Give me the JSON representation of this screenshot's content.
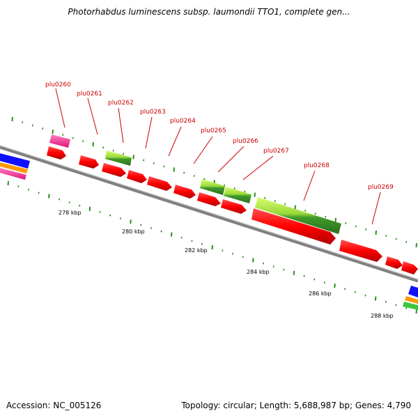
{
  "header": {
    "title": "Photorhabdus luminescens subsp. laumondii TTO1, complete gen..."
  },
  "footer": {
    "accession": "Accession: NC_005126",
    "summary": "Topology: circular; Length: 5,688,987 bp; Genes: 4,790"
  },
  "colors": {
    "backbone": "#808080",
    "tick": "#2e8b22",
    "cds": "#ff0000",
    "gene_label": "#cc0000",
    "green_feature": "#5bbf2a",
    "light_green_feature": "#c6f05a",
    "magenta_feature": "#ff3399",
    "blue_feature": "#1010ff",
    "orange_feature": "#ff9900"
  },
  "gene_labels": [
    "plu0260",
    "plu0261",
    "plu0262",
    "plu0263",
    "plu0264",
    "plu0265",
    "plu0266",
    "plu0267",
    "plu0268",
    "plu0269"
  ],
  "scale_labels": [
    "278 kbp",
    "280 kbp",
    "282 kbp",
    "284 kbp",
    "286 kbp",
    "288 kbp"
  ]
}
